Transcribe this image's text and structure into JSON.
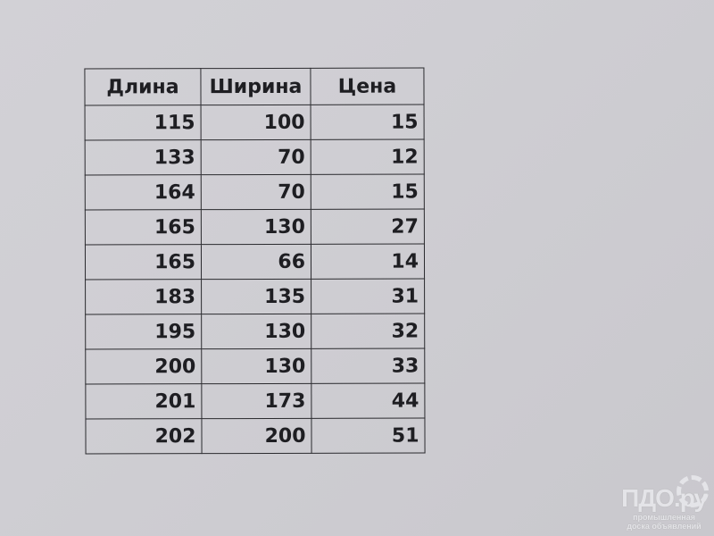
{
  "table": {
    "headers": [
      "Длина",
      "Ширина",
      "Цена"
    ],
    "rows": [
      [
        "115",
        "100",
        "15"
      ],
      [
        "133",
        "70",
        "12"
      ],
      [
        "164",
        "70",
        "15"
      ],
      [
        "165",
        "130",
        "27"
      ],
      [
        "165",
        "66",
        "14"
      ],
      [
        "183",
        "135",
        "31"
      ],
      [
        "195",
        "130",
        "32"
      ],
      [
        "200",
        "130",
        "33"
      ],
      [
        "201",
        "173",
        "44"
      ],
      [
        "202",
        "200",
        "51"
      ]
    ]
  },
  "watermark": {
    "title": "ПДО.ру",
    "line1": "промышленная",
    "line2": "доска объявлений"
  }
}
